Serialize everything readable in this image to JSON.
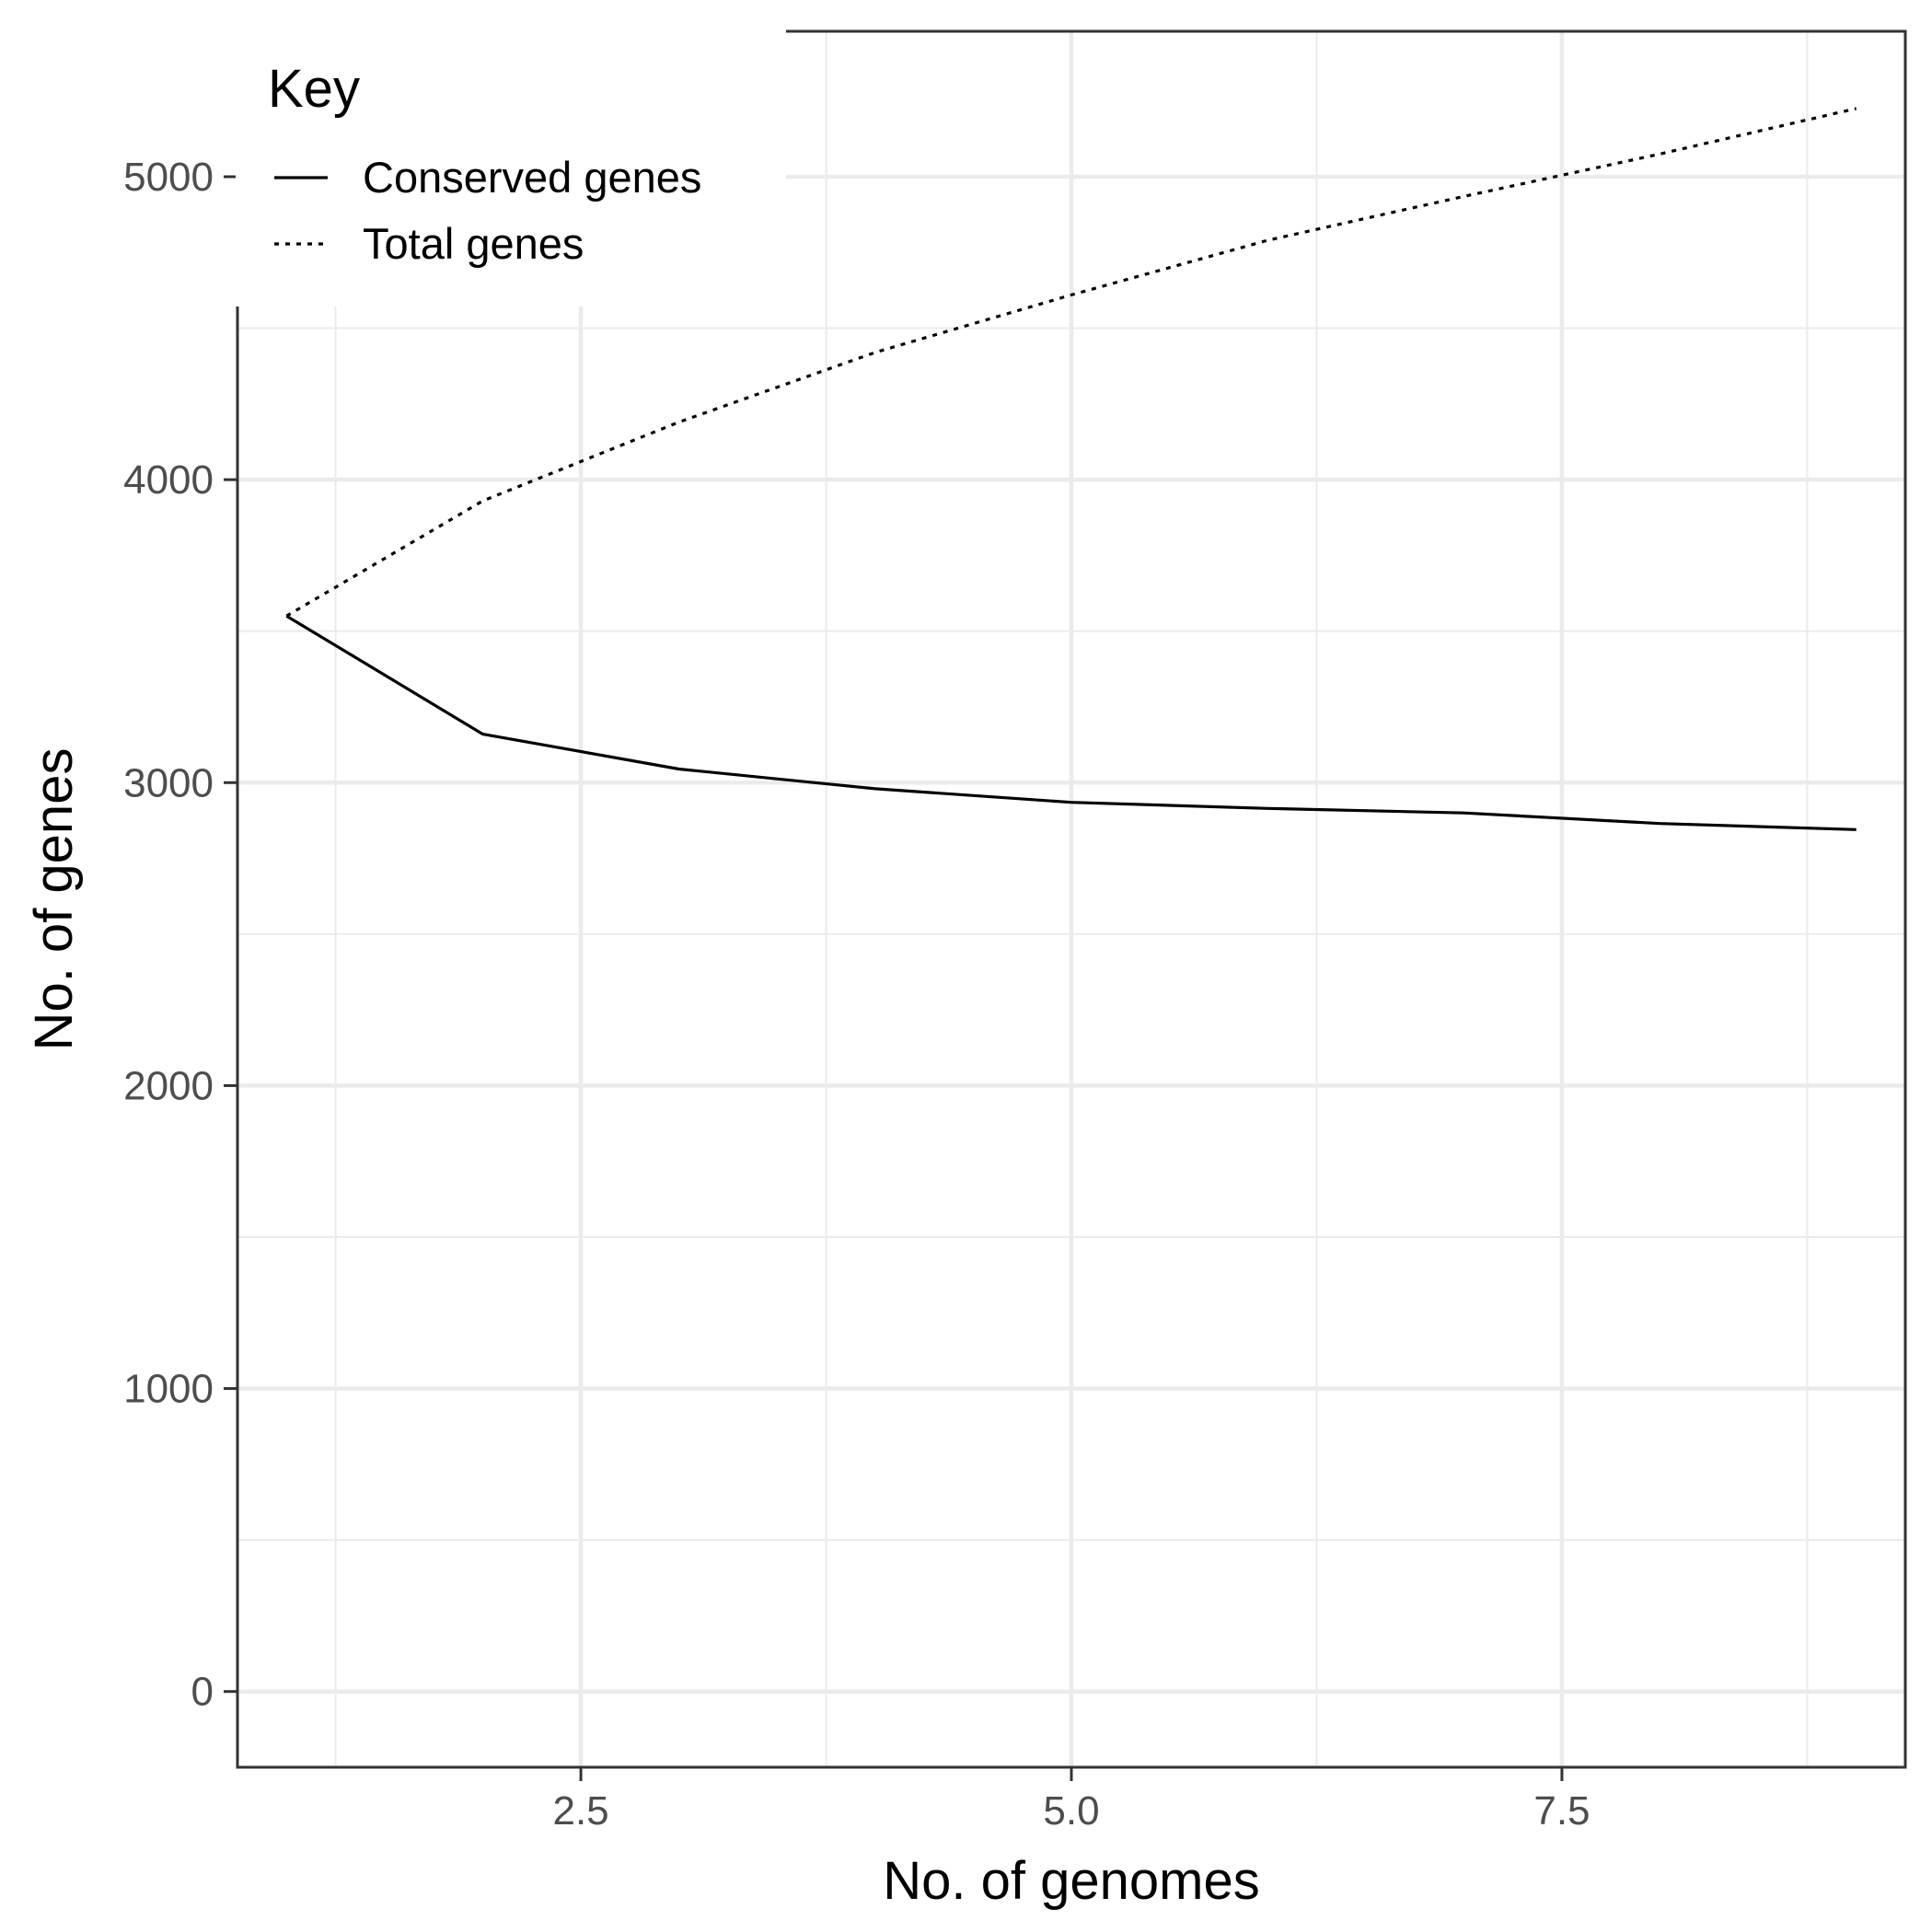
{
  "chart_data": {
    "type": "line",
    "title": "",
    "xlabel": "No. of genomes",
    "ylabel": "No. of genes",
    "xlim": [
      0.75,
      9.25
    ],
    "ylim": [
      -250,
      5480
    ],
    "x_ticks": [
      2.5,
      5.0,
      7.5
    ],
    "x_tick_labels": [
      "2.5",
      "5.0",
      "7.5"
    ],
    "x_minor_ticks": [
      1.25,
      3.75,
      6.25,
      8.75
    ],
    "y_ticks": [
      0,
      1000,
      2000,
      3000,
      4000,
      5000
    ],
    "y_tick_labels": [
      "0",
      "1000",
      "2000",
      "3000",
      "4000",
      "5000"
    ],
    "y_minor_ticks": [
      500,
      1500,
      2500,
      3500,
      4500
    ],
    "grid": true,
    "legend": {
      "title": "Key",
      "placement": "top-left"
    },
    "x": [
      1,
      2,
      3,
      4,
      5,
      6,
      7,
      8,
      9
    ],
    "series": [
      {
        "name": "Conserved genes",
        "linestyle": "solid",
        "color": "#000000",
        "values": [
          3550,
          3160,
          3045,
          2980,
          2935,
          2915,
          2900,
          2865,
          2845
        ]
      },
      {
        "name": "Total genes",
        "linestyle": "dotted",
        "color": "#000000",
        "values": [
          3550,
          3930,
          4190,
          4420,
          4610,
          4790,
          4935,
          5075,
          5225
        ]
      }
    ]
  }
}
